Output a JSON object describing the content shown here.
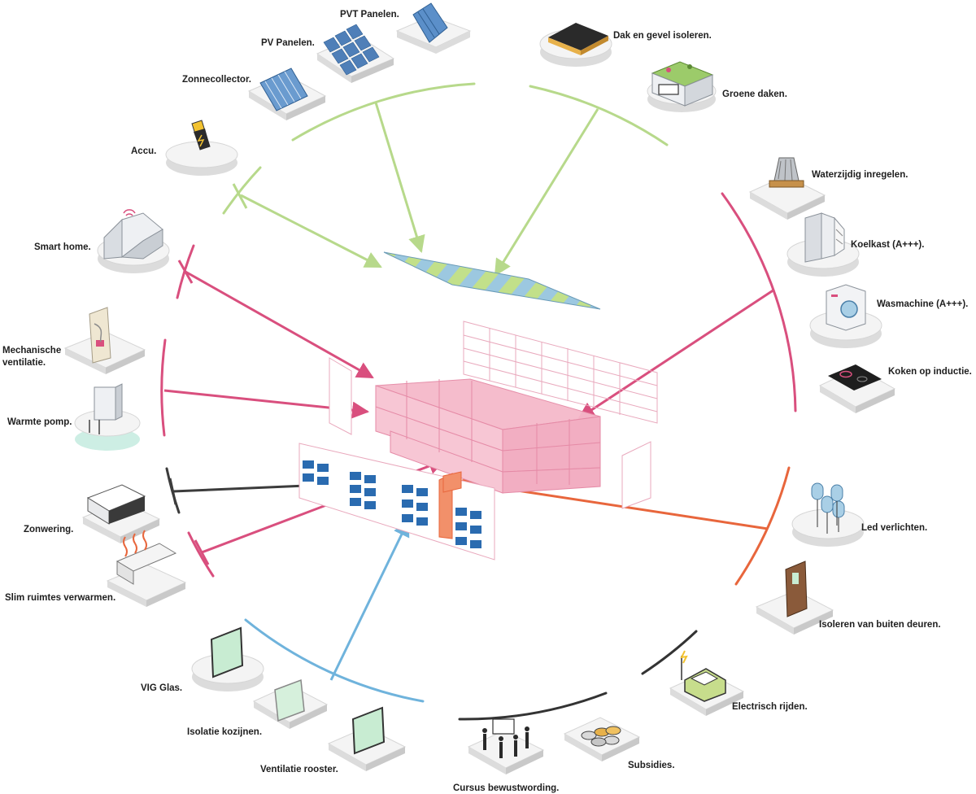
{
  "colors": {
    "energy": "#b7d98b",
    "building": "#d94f7e",
    "shading": "#3c3c3c",
    "lighting": "#e8663c",
    "glazing": "#6fb3dc",
    "awareness": "#333333",
    "stripe_blue": "#9cc8e0",
    "stripe_green": "#c2e08a",
    "core_pink": "#f5b9ca"
  },
  "items": {
    "pvt_panelen": "PVT Panelen.",
    "pv_panelen": "PV Panelen.",
    "zonnecollector": "Zonnecollector.",
    "accu": "Accu.",
    "smart_home": "Smart home.",
    "mechanische_1": "Mechanische",
    "mechanische_2": "ventilatie.",
    "warmte_pomp": "Warmte pomp.",
    "zonwering": "Zonwering.",
    "slim_verwarmen": "Slim ruimtes verwarmen.",
    "vig_glas": "VIG Glas.",
    "isolatie_kozijnen": "Isolatie kozijnen.",
    "ventilatie_rooster": "Ventilatie rooster.",
    "cursus": "Cursus bewustwording.",
    "subsidies": "Subsidies.",
    "electrisch_rijden": "Electrisch rijden.",
    "isoleren_deuren": "Isoleren van buiten deuren.",
    "led_verlichten": "Led verlichten.",
    "koken_inductie": "Koken op inductie.",
    "wasmachine": "Wasmachine (A+++).",
    "koelkast": "Koelkast (A+++).",
    "waterzijdig": "Waterzijdig inregelen.",
    "groene_daken": "Groene daken.",
    "dak_gevel": "Dak en gevel isoleren."
  },
  "icons": {
    "pvt": "pvt-panel-icon",
    "pv": "pv-panel-icon",
    "collector": "solar-collector-icon",
    "accu": "battery-icon",
    "smart_home": "smart-home-icon",
    "ventilation": "ventilation-unit-icon",
    "heat_pump": "heat-pump-icon",
    "awning": "awning-icon",
    "heating": "room-heating-icon",
    "vig": "vig-glass-icon",
    "frame": "window-frame-icon",
    "grille": "ventilation-grille-icon",
    "course": "course-icon",
    "coins": "coins-icon",
    "ev": "electric-car-icon",
    "door": "door-icon",
    "led": "led-bulb-icon",
    "hob": "induction-hob-icon",
    "washer": "washing-machine-icon",
    "fridge": "fridge-icon",
    "valve": "valve-icon",
    "green_roof": "green-roof-icon",
    "roof_insulation": "roof-insulation-icon"
  }
}
